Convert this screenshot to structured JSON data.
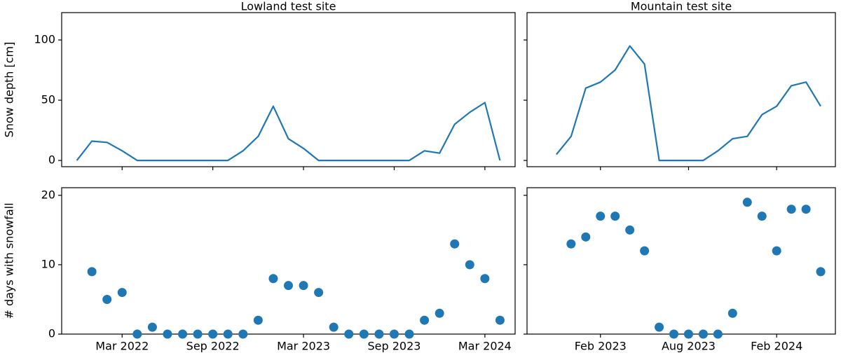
{
  "chart_data": [
    {
      "type": "line",
      "title": "Lowland test site",
      "ylabel": "Snow depth [cm]",
      "color": "#1f77b4",
      "x": [
        "2021-12",
        "2022-01",
        "2022-02",
        "2022-03",
        "2022-04",
        "2022-05",
        "2022-06",
        "2022-07",
        "2022-08",
        "2022-09",
        "2022-10",
        "2022-11",
        "2022-12",
        "2023-01",
        "2023-02",
        "2023-03",
        "2023-04",
        "2023-05",
        "2023-06",
        "2023-07",
        "2023-08",
        "2023-09",
        "2023-10",
        "2023-11",
        "2023-12",
        "2024-01",
        "2024-02",
        "2024-03",
        "2024-04"
      ],
      "values": [
        0,
        16,
        15,
        8,
        0,
        0,
        0,
        0,
        0,
        0,
        0,
        8,
        20,
        45,
        18,
        10,
        0,
        0,
        0,
        0,
        0,
        0,
        0,
        8,
        6,
        30,
        40,
        48,
        0
      ],
      "xlim": [
        "2021-11",
        "2024-05"
      ],
      "ylim": [
        -5.2,
        122.7
      ],
      "yticks": [
        0,
        50,
        100
      ],
      "xticks": [
        "2022-03",
        "2022-09",
        "2023-03",
        "2023-09",
        "2024-03"
      ]
    },
    {
      "type": "line",
      "title": "Mountain test site",
      "color": "#1f77b4",
      "x": [
        "2022-11",
        "2022-12",
        "2023-01",
        "2023-02",
        "2023-03",
        "2023-04",
        "2023-05",
        "2023-06",
        "2023-07",
        "2023-08",
        "2023-09",
        "2023-10",
        "2023-11",
        "2023-12",
        "2024-01",
        "2024-02",
        "2024-03",
        "2024-04",
        "2024-05"
      ],
      "values": [
        5,
        20,
        60,
        65,
        75,
        95,
        80,
        0,
        0,
        0,
        0,
        8,
        18,
        20,
        38,
        45,
        62,
        65,
        45
      ],
      "xlim": [
        "2022-09",
        "2024-06"
      ],
      "ylim": [
        -5.2,
        122.7
      ],
      "yticks": [
        0,
        50,
        100
      ],
      "xticks": [
        "2023-02",
        "2023-08",
        "2024-02"
      ]
    },
    {
      "type": "scatter",
      "ylabel": "# days with snowfall",
      "color": "#1f77b4",
      "x": [
        "2022-01",
        "2022-02",
        "2022-03",
        "2022-04",
        "2022-05",
        "2022-06",
        "2022-07",
        "2022-08",
        "2022-09",
        "2022-10",
        "2022-11",
        "2022-12",
        "2023-01",
        "2023-02",
        "2023-03",
        "2023-04",
        "2023-05",
        "2023-06",
        "2023-07",
        "2023-08",
        "2023-09",
        "2023-10",
        "2023-11",
        "2023-12",
        "2024-01",
        "2024-02",
        "2024-03",
        "2024-04"
      ],
      "values": [
        9,
        5,
        6,
        0,
        1,
        0,
        0,
        0,
        0,
        0,
        0,
        2,
        8,
        7,
        7,
        6,
        1,
        0,
        0,
        0,
        0,
        0,
        2,
        3,
        13,
        10,
        8,
        2
      ],
      "xlim": [
        "2021-11",
        "2024-05"
      ],
      "ylim": [
        0,
        21.1
      ],
      "yticks": [
        0,
        10,
        20
      ],
      "xticks": [
        {
          "value": "2022-03",
          "label": "Mar 2022"
        },
        {
          "value": "2022-09",
          "label": "Sep 2022"
        },
        {
          "value": "2023-03",
          "label": "Mar 2023"
        },
        {
          "value": "2023-09",
          "label": "Sep 2023"
        },
        {
          "value": "2024-03",
          "label": "Mar 2024"
        }
      ]
    },
    {
      "type": "scatter",
      "color": "#1f77b4",
      "x": [
        "2022-12",
        "2023-01",
        "2023-02",
        "2023-03",
        "2023-04",
        "2023-05",
        "2023-06",
        "2023-07",
        "2023-08",
        "2023-09",
        "2023-10",
        "2023-11",
        "2023-12",
        "2024-01",
        "2024-02",
        "2024-03",
        "2024-04",
        "2024-05"
      ],
      "values": [
        13,
        14,
        17,
        17,
        15,
        12,
        1,
        0,
        0,
        0,
        0,
        3,
        19,
        17,
        12,
        18,
        18,
        9
      ],
      "xlim": [
        "2022-09",
        "2024-06"
      ],
      "ylim": [
        0,
        21.1
      ],
      "yticks": [
        0,
        10,
        20
      ],
      "xticks": [
        {
          "value": "2023-02",
          "label": "Feb 2023"
        },
        {
          "value": "2023-08",
          "label": "Aug 2023"
        },
        {
          "value": "2024-02",
          "label": "Feb 2024"
        }
      ]
    }
  ]
}
